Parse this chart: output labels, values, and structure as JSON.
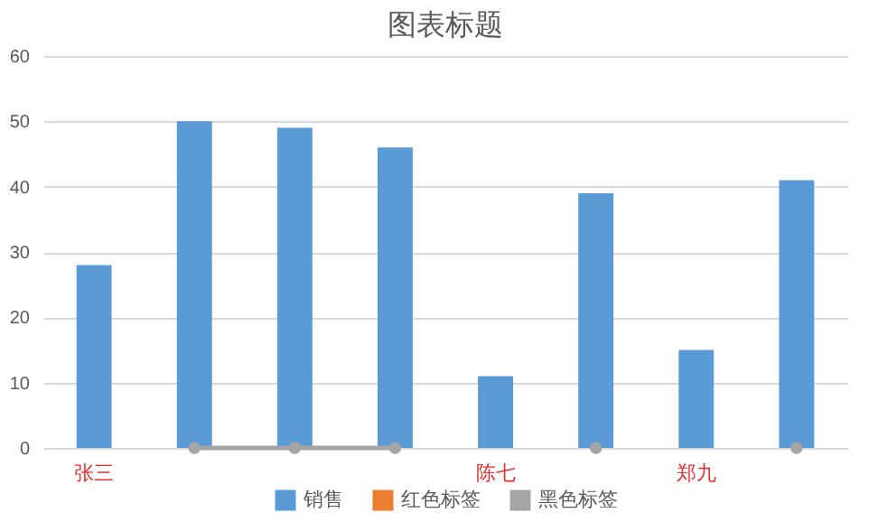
{
  "chart_data": {
    "type": "bar",
    "title": "图表标题",
    "categories": [
      "张三",
      null,
      null,
      null,
      "陈七",
      null,
      "郑九",
      null
    ],
    "series": [
      {
        "name": "销售",
        "color": "#5b9bd5",
        "values": [
          28,
          50,
          49,
          46,
          11,
          39,
          15,
          41
        ]
      },
      {
        "name": "红色标签",
        "type": "line",
        "color": "#ed7d31",
        "values": [
          null,
          null,
          null,
          null,
          null,
          null,
          null,
          null
        ]
      },
      {
        "name": "黑色标签",
        "type": "line",
        "color": "#a5a5a5",
        "values": [
          null,
          0,
          0,
          0,
          null,
          0,
          null,
          0
        ]
      }
    ],
    "ylim": [
      0,
      60
    ],
    "yticks": [
      0,
      10,
      20,
      30,
      40,
      50,
      60
    ],
    "grid": "y",
    "legend": "bottom",
    "marker": "circle"
  }
}
